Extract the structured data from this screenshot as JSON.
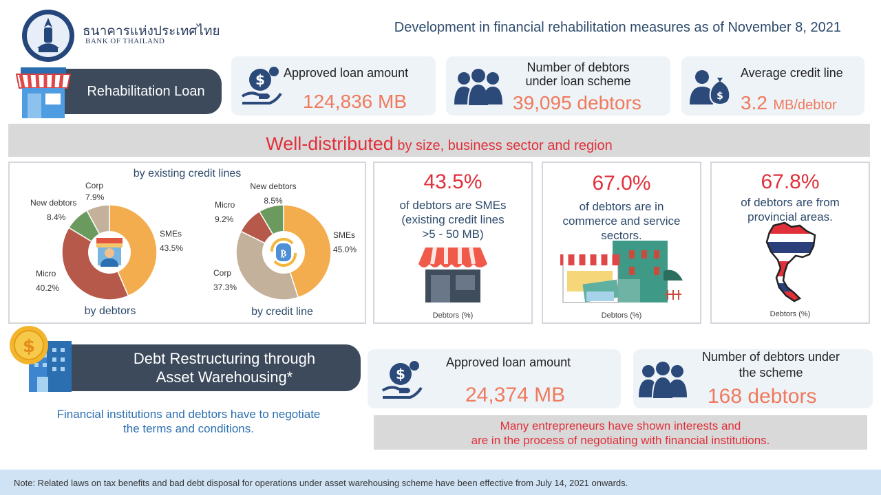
{
  "header": {
    "thai_name": "ธนาคารแห่งประเทศไทย",
    "english_name": "BANK OF THAILAND",
    "title": "Development in financial rehabilitation measures as of November 8, 2021"
  },
  "rehab": {
    "label": "Rehabilitation Loan",
    "approved_title": "Approved loan amount",
    "approved_value": "124,836 MB",
    "debtors_title_1": "Number of debtors",
    "debtors_title_2": "under loan scheme",
    "debtors_value": "39,095 debtors",
    "avg_title": "Average credit line",
    "avg_value": "3.2",
    "avg_unit": "MB/debtor"
  },
  "distribution": {
    "headline_strong": "Well-distributed",
    "headline_rest": " by size, business sector and region",
    "chart_title": "by existing credit lines",
    "donut1_caption": "by debtors",
    "donut2_caption": "by credit line",
    "donut1_labels": {
      "corp": "Corp",
      "corp_pct": "7.9%",
      "new": "New debtors",
      "new_pct": "8.4%",
      "micro": "Micro",
      "micro_pct": "40.2%",
      "smes": "SMEs",
      "smes_pct": "43.5%"
    },
    "donut2_labels": {
      "new": "New debtors",
      "new_pct": "8.5%",
      "micro": "Micro",
      "micro_pct": "9.2%",
      "corp": "Corp",
      "corp_pct": "37.3%",
      "smes": "SMEs",
      "smes_pct": "45.0%"
    },
    "stat1_value": "43.5%",
    "stat1_text_1": "of debtors are SMEs",
    "stat1_text_2": "(existing credit lines",
    "stat1_text_3": ">5 - 50 MB)",
    "stat1_caption": "Debtors (%)",
    "stat2_value": "67.0%",
    "stat2_text_1": "of debtors are in",
    "stat2_text_2": "commerce and service",
    "stat2_text_3": "sectors.",
    "stat2_caption": "Debtors (%)",
    "stat3_value": "67.8%",
    "stat3_text_1": "of debtors are from",
    "stat3_text_2": "provincial areas.",
    "stat3_caption": "Debtors (%)"
  },
  "chart_data": [
    {
      "type": "pie",
      "title": "by debtors",
      "categories": [
        "SMEs",
        "Micro",
        "New debtors",
        "Corp"
      ],
      "values": [
        43.5,
        40.2,
        8.4,
        7.9
      ],
      "colors": [
        "#f4ad4e",
        "#b6584a",
        "#6b9a5e",
        "#c3b19c"
      ]
    },
    {
      "type": "pie",
      "title": "by credit line",
      "categories": [
        "SMEs",
        "Corp",
        "Micro",
        "New debtors"
      ],
      "values": [
        45.0,
        37.3,
        9.2,
        8.5
      ],
      "colors": [
        "#f4ad4e",
        "#c3b19c",
        "#b6584a",
        "#6b9a5e"
      ]
    }
  ],
  "warehousing": {
    "label_1": "Debt Restructuring through",
    "label_2": "Asset Warehousing*",
    "note_1": "Financial institutions and debtors have to negotiate",
    "note_2": "the terms and conditions.",
    "approved_title": "Approved loan amount",
    "approved_value": "24,374 MB",
    "debtors_title_1": "Number of debtors under",
    "debtors_title_2": "the scheme",
    "debtors_value": "168 debtors",
    "banner_1": "Many entrepreneurs have shown interests and",
    "banner_2": "are in the process of negotiating with financial institutions."
  },
  "footer": {
    "note": "Note: Related laws on tax benefits and bad debt disposal for operations under asset warehousing scheme have been effective from July 14, 2021 onwards."
  },
  "icons": [
    "bank-seal-icon",
    "shop-icon",
    "money-hand-icon",
    "people-group-icon",
    "money-bag-user-icon",
    "shopkeeper-icon",
    "bitcoin-coin-icon",
    "storefront-icon",
    "street-shops-icon",
    "thailand-map-icon",
    "building-coin-icon"
  ],
  "colors": {
    "navy": "#3c4a5c",
    "salmon": "#ef7a5c",
    "red": "#e0303a",
    "blue": "#2d4a6b",
    "light_card": "#eef3f8",
    "footer": "#cfe3f4"
  }
}
